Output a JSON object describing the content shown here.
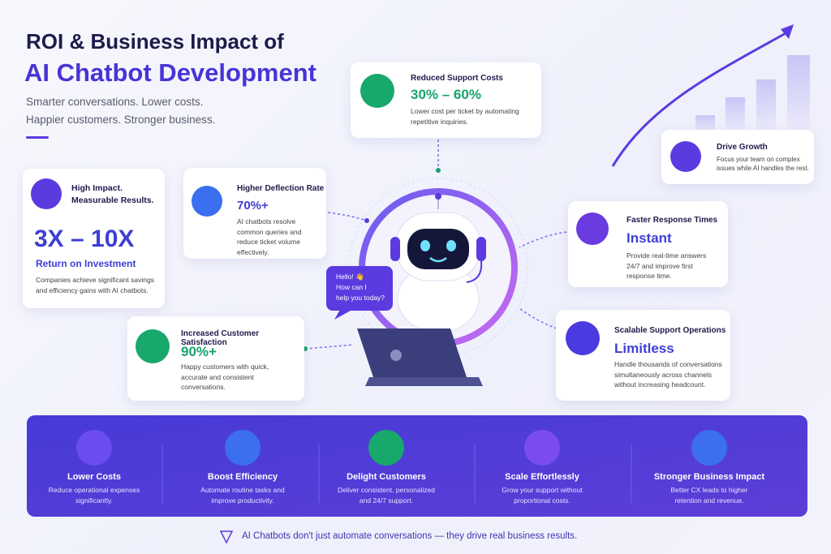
{
  "header": {
    "title_line1": "ROI & Business Impact of",
    "title_line2": "AI Chatbot Development",
    "subtitle_lines": [
      "Smarter conversations. Lower costs.",
      "Happier customers. Stronger business."
    ]
  },
  "cards": {
    "impact": {
      "title_lines": [
        "High Impact.",
        "Measurable Results."
      ],
      "value": "3X – 10X",
      "label": "Return on Investment",
      "description": "Companies achieve significant savings and efficiency gains with AI chatbots."
    },
    "support_costs": {
      "title": "Reduced Support Costs",
      "value": "30% – 60%",
      "description": "Lower cost per ticket by automating repetitive inquiries."
    },
    "deflection": {
      "title": "Higher Deflection Rate",
      "value": "70%+",
      "description": "AI chatbots resolve common queries and reduce ticket volume effectively."
    },
    "growth": {
      "title": "Drive Growth",
      "description": "Focus your team on complex issues while AI handles the rest."
    },
    "response": {
      "title": "Faster Response Times",
      "value": "Instant",
      "description": "Provide real-time answers 24/7 and improve first response time."
    },
    "satisfaction": {
      "title": "Increased Customer Satisfaction",
      "value": "90%+",
      "description": "Happy customers with quick, accurate and consistent conversations."
    },
    "scalable": {
      "title": "Scalable Support Operations",
      "value": "Limitless",
      "description": "Handle thousands of conversations simultaneously across channels without increasing headcount."
    }
  },
  "chat_bubble": {
    "lines": [
      "Hello! 👋",
      "How can I",
      "help you today?"
    ]
  },
  "benefits": [
    {
      "title": "Lower Costs",
      "description": "Reduce operational expenses significantly."
    },
    {
      "title": "Boost Efficiency",
      "description": "Automate routine tasks and improve productivity."
    },
    {
      "title": "Delight Customers",
      "description": "Deliver consistent, personalized and 24/7 support."
    },
    {
      "title": "Scale Effortlessly",
      "description": "Grow your support without proportional costs."
    },
    {
      "title": "Stronger Business Impact",
      "description": "Better CX leads to higher retention and revenue."
    }
  ],
  "footer": {
    "text": "AI Chatbots don't just automate conversations — they drive real business results."
  }
}
